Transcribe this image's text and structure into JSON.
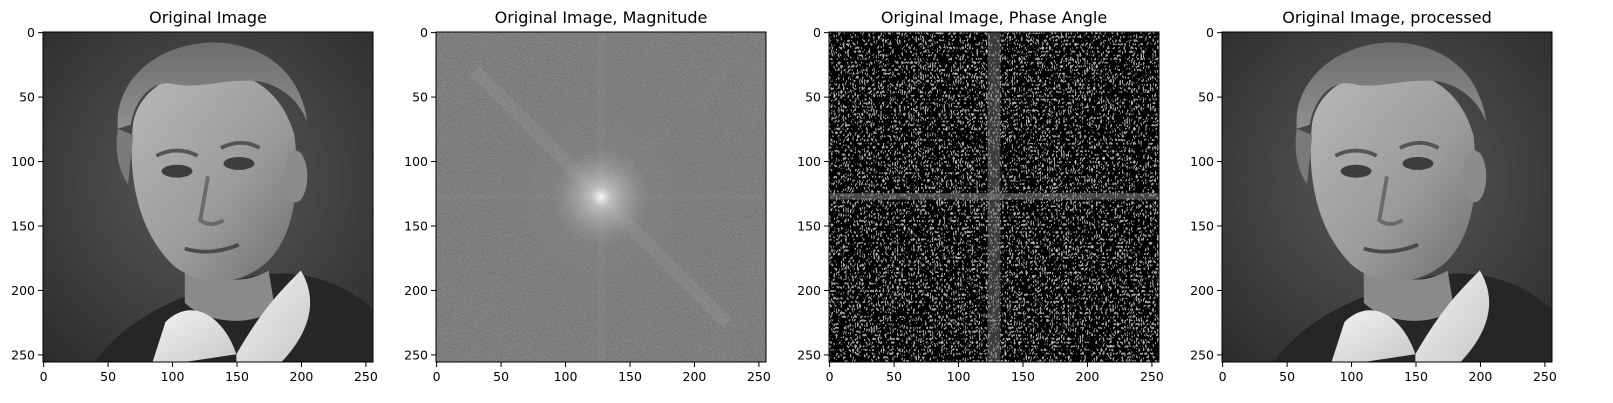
{
  "chart_data": [
    {
      "type": "heatmap",
      "title": "Original Image",
      "content": "grayscale portrait",
      "xlim": [
        0,
        255
      ],
      "ylim": [
        255,
        0
      ],
      "xticks": [
        0,
        50,
        100,
        150,
        200,
        250
      ],
      "yticks": [
        0,
        50,
        100,
        150,
        200,
        250
      ],
      "colormap": "gray"
    },
    {
      "type": "heatmap",
      "title": "Original Image, Magnitude",
      "content": "log-magnitude of centered 2D FFT, bright peak at center with diagonal streak",
      "xlim": [
        0,
        255
      ],
      "ylim": [
        255,
        0
      ],
      "xticks": [
        0,
        50,
        100,
        150,
        200,
        250
      ],
      "yticks": [
        0,
        50,
        100,
        150,
        200,
        250
      ],
      "colormap": "gray"
    },
    {
      "type": "heatmap",
      "title": "Original Image, Phase Angle",
      "content": "phase angle of 2D FFT, high-frequency noise with central cross",
      "xlim": [
        0,
        255
      ],
      "ylim": [
        255,
        0
      ],
      "xticks": [
        0,
        50,
        100,
        150,
        200,
        250
      ],
      "yticks": [
        0,
        50,
        100,
        150,
        200,
        250
      ],
      "colormap": "gray"
    },
    {
      "type": "heatmap",
      "title": "Original Image, processed",
      "content": "grayscale portrait reconstructed from magnitude and phase",
      "xlim": [
        0,
        255
      ],
      "ylim": [
        255,
        0
      ],
      "xticks": [
        0,
        50,
        100,
        150,
        200,
        250
      ],
      "yticks": [
        0,
        50,
        100,
        150,
        200,
        250
      ],
      "colormap": "gray"
    }
  ]
}
